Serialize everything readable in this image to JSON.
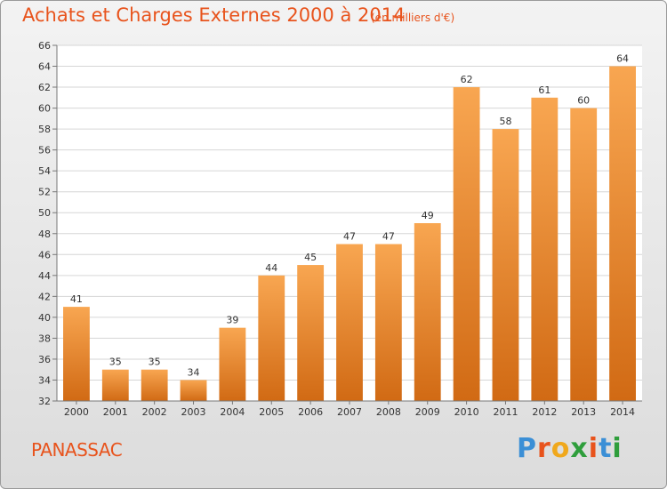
{
  "header": {
    "title": "Achats et Charges Externes 2000 à 2014",
    "unit": "(en milliers d'€)"
  },
  "footer": {
    "commune": "PANASSAC",
    "brand": "Proxiti"
  },
  "colors": {
    "accent": "#e8531c",
    "bar_light": "#f8a651",
    "bar_dark": "#d16a14",
    "brand_letters": [
      "#3b8fd6",
      "#e8531c",
      "#f0a81c",
      "#2f9e3c",
      "#e8531c",
      "#3b8fd6",
      "#2f9e3c"
    ]
  },
  "chart_data": {
    "type": "bar",
    "title": "Achats et Charges Externes 2000 à 2014",
    "subtitle": "(en milliers d'€)",
    "xlabel": "",
    "ylabel": "",
    "categories": [
      "2000",
      "2001",
      "2002",
      "2003",
      "2004",
      "2005",
      "2006",
      "2007",
      "2008",
      "2009",
      "2010",
      "2011",
      "2012",
      "2013",
      "2014"
    ],
    "values": [
      41,
      35,
      35,
      34,
      39,
      44,
      45,
      47,
      47,
      49,
      62,
      58,
      61,
      60,
      64
    ],
    "ylim": [
      32,
      66
    ],
    "yticks": [
      32,
      34,
      36,
      38,
      40,
      42,
      44,
      46,
      48,
      50,
      52,
      54,
      56,
      58,
      60,
      62,
      64,
      66
    ],
    "grid": true,
    "legend": "none"
  }
}
